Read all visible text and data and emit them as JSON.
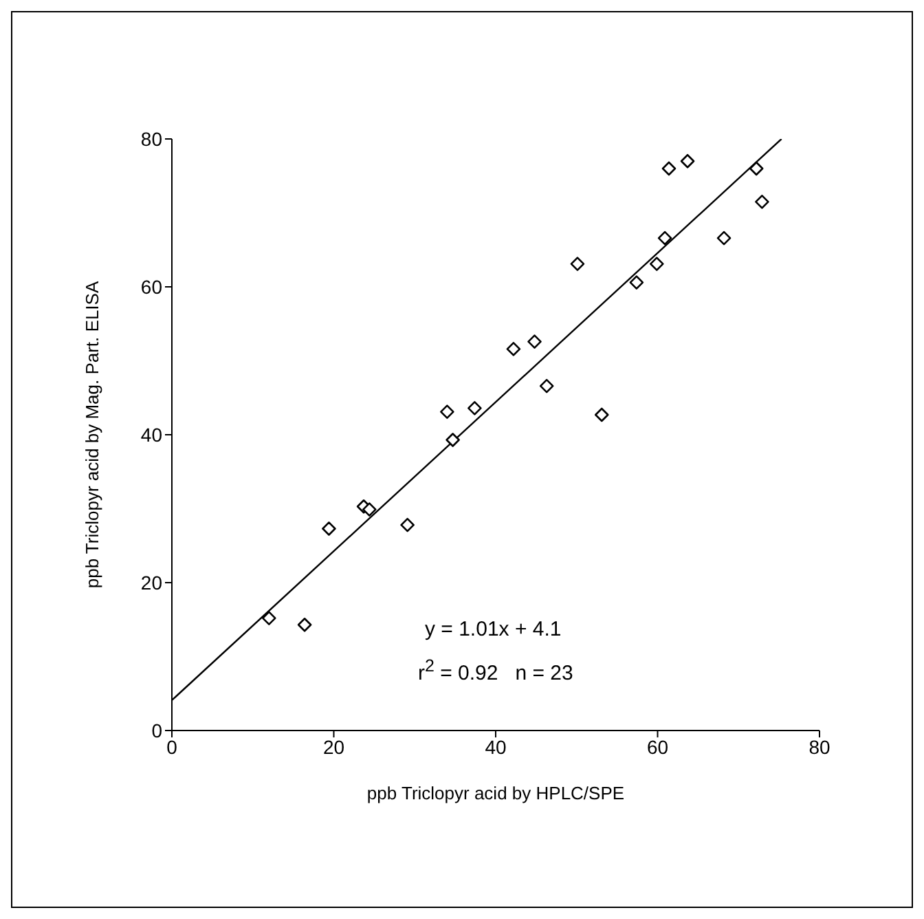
{
  "chart_data": {
    "type": "scatter",
    "xlabel": "ppb Triclopyr acid by HPLC/SPE",
    "ylabel": "ppb Triclopyr acid by Mag. Part. ELISA",
    "annotations": [
      "y = 1.01x + 4.1",
      "r$^{2}$ = 0.92   n = 23"
    ],
    "xlim": [
      0,
      80
    ],
    "xticks": [
      0,
      20,
      40,
      60,
      80
    ],
    "ylim": [
      0,
      80
    ],
    "yticks": [
      0,
      20,
      40,
      60,
      80
    ],
    "grid": false,
    "legend": false,
    "marker": "diamond",
    "series": [
      {
        "color": "#000000",
        "x": [
          12.0,
          16.4,
          19.4,
          23.7,
          24.4,
          29.1,
          34.0,
          34.7,
          37.4,
          42.2,
          44.8,
          46.3,
          50.1,
          53.1,
          57.4,
          59.9,
          60.9,
          61.4,
          63.7,
          68.2,
          72.2,
          72.9
        ],
        "values": [
          15.2,
          14.3,
          27.3,
          30.3,
          29.9,
          27.8,
          43.1,
          39.3,
          43.6,
          51.6,
          52.6,
          46.6,
          63.1,
          42.7,
          60.6,
          63.1,
          66.6,
          76.0,
          77.0,
          66.6,
          76.0,
          71.5
        ]
      },
      {
        "type": "line",
        "marker": "none",
        "color": "#000000",
        "x": [
          0,
          75.3
        ],
        "values": [
          4.1,
          80
        ]
      }
    ]
  }
}
